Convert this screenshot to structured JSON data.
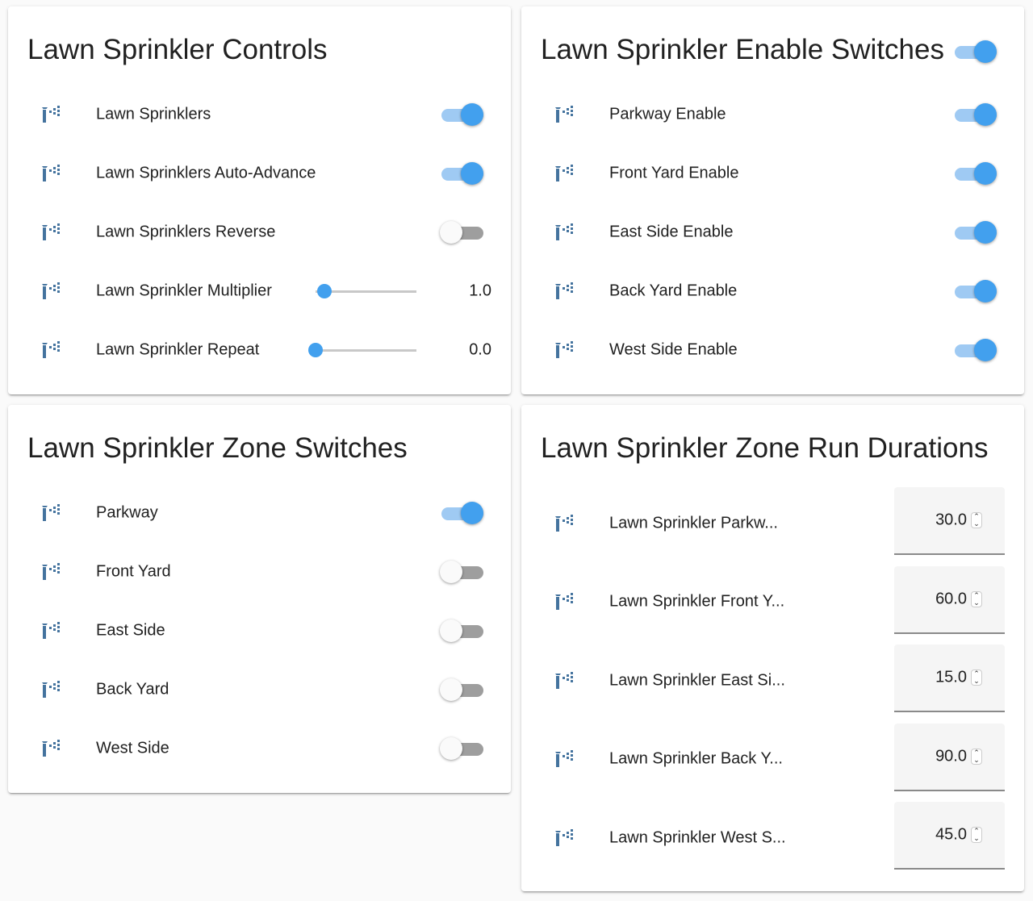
{
  "colors": {
    "accent": "#42a0ee",
    "icon": "#44739e"
  },
  "controls": {
    "title": "Lawn Sprinkler Controls",
    "rows": [
      {
        "label": "Lawn Sprinklers",
        "type": "toggle",
        "on": true
      },
      {
        "label": "Lawn Sprinklers Auto-Advance",
        "type": "toggle",
        "on": true
      },
      {
        "label": "Lawn Sprinklers Reverse",
        "type": "toggle",
        "on": false
      },
      {
        "label": "Lawn Sprinkler Multiplier",
        "type": "slider",
        "value": "1.0",
        "fraction": 0.09
      },
      {
        "label": "Lawn Sprinkler Repeat",
        "type": "slider",
        "value": "0.0",
        "fraction": 0.06
      }
    ]
  },
  "enable": {
    "title": "Lawn Sprinkler Enable Switches",
    "header_toggle_on": true,
    "rows": [
      {
        "label": "Parkway Enable",
        "on": true
      },
      {
        "label": "Front Yard Enable",
        "on": true
      },
      {
        "label": "East Side Enable",
        "on": true
      },
      {
        "label": "Back Yard Enable",
        "on": true
      },
      {
        "label": "West Side Enable",
        "on": true
      }
    ]
  },
  "zones": {
    "title": "Lawn Sprinkler Zone Switches",
    "rows": [
      {
        "label": "Parkway",
        "on": true
      },
      {
        "label": "Front Yard",
        "on": false
      },
      {
        "label": "East Side",
        "on": false
      },
      {
        "label": "Back Yard",
        "on": false
      },
      {
        "label": "West Side",
        "on": false
      }
    ]
  },
  "durations": {
    "title": "Lawn Sprinkler Zone Run Durations",
    "rows": [
      {
        "label": "Lawn Sprinkler Parkw...",
        "value": "30.0"
      },
      {
        "label": "Lawn Sprinkler Front Y...",
        "value": "60.0"
      },
      {
        "label": "Lawn Sprinkler East Si...",
        "value": "15.0"
      },
      {
        "label": "Lawn Sprinkler Back Y...",
        "value": "90.0"
      },
      {
        "label": "Lawn Sprinkler West S...",
        "value": "45.0"
      }
    ]
  }
}
